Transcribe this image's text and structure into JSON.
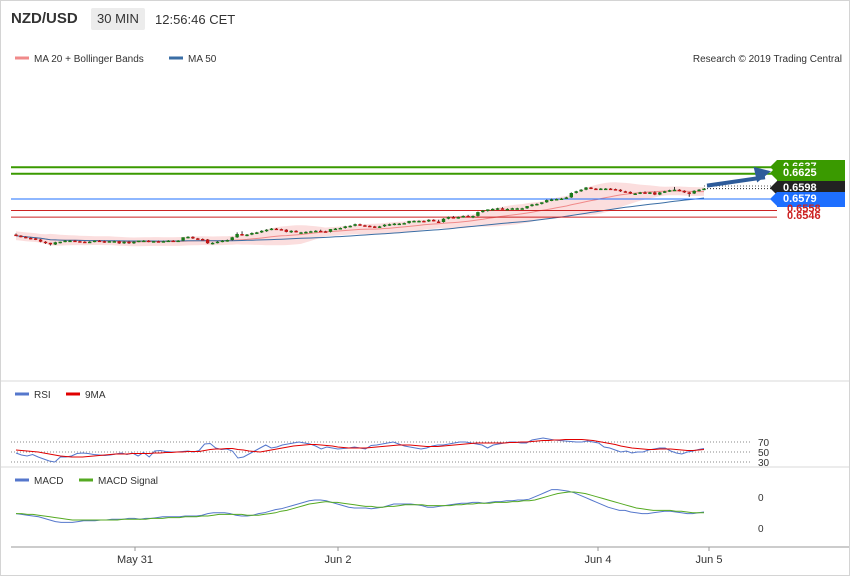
{
  "header": {
    "symbol": "NZD/USD",
    "timeframe": "30 MIN",
    "time": "12:56:46 CET"
  },
  "legend_main": {
    "bb_label": "MA 20 + Bollinger Bands",
    "ma_label": "MA 50",
    "bb_color": "#f08a8a",
    "ma_color": "#3a6ea5"
  },
  "credit": "Research © 2019 Trading Central",
  "levels": [
    {
      "value": "0.6637",
      "kind": "target",
      "color": "#3a9a00"
    },
    {
      "value": "0.6625",
      "kind": "target",
      "color": "#3a9a00"
    },
    {
      "value": "0.6598",
      "kind": "last",
      "color": "#222222"
    },
    {
      "value": "0.6579",
      "kind": "pivot",
      "color": "#1e6fff"
    },
    {
      "value": "0.6558",
      "kind": "support",
      "color": "#cc2222"
    },
    {
      "value": "0.6546",
      "kind": "support",
      "color": "#cc2222"
    }
  ],
  "rsi_legend": {
    "rsi_label": "RSI",
    "ma_label": "9MA"
  },
  "rsi_ticks": [
    "70",
    "50",
    "30"
  ],
  "macd_legend": {
    "macd_label": "MACD",
    "signal_label": "MACD Signal"
  },
  "macd_ticks": [
    "0",
    "0"
  ],
  "x_labels": [
    "May 31",
    "Jun 2",
    "Jun 4",
    "Jun 5"
  ],
  "chart_data": {
    "type": "candlestick",
    "timeframe": "30 MIN",
    "ylim": [
      0.6486,
      0.6647
    ],
    "x_labels": [
      "May 31",
      "Jun 2",
      "Jun 4",
      "Jun 5"
    ],
    "candles": [
      [
        0.6514,
        0.6516,
        0.6512,
        0.6512
      ],
      [
        0.6512,
        0.6513,
        0.6509,
        0.651
      ],
      [
        0.651,
        0.6511,
        0.6507,
        0.6508
      ],
      [
        0.6508,
        0.6509,
        0.6505,
        0.6507
      ],
      [
        0.6507,
        0.6508,
        0.6504,
        0.6505
      ],
      [
        0.6505,
        0.6506,
        0.65,
        0.6501
      ],
      [
        0.6501,
        0.6502,
        0.6497,
        0.6499
      ],
      [
        0.6499,
        0.6499,
        0.6494,
        0.6496
      ],
      [
        0.6496,
        0.6501,
        0.6495,
        0.65
      ],
      [
        0.65,
        0.6501,
        0.6498,
        0.6501
      ],
      [
        0.6501,
        0.6504,
        0.65,
        0.6503
      ],
      [
        0.6503,
        0.6504,
        0.6502,
        0.6503
      ],
      [
        0.6503,
        0.6504,
        0.6501,
        0.6502
      ],
      [
        0.6502,
        0.6503,
        0.65,
        0.6501
      ],
      [
        0.6501,
        0.6502,
        0.65,
        0.65
      ],
      [
        0.65,
        0.6502,
        0.6499,
        0.6501
      ],
      [
        0.6501,
        0.6503,
        0.65,
        0.6503
      ],
      [
        0.6503,
        0.6504,
        0.6502,
        0.6502
      ],
      [
        0.6502,
        0.6503,
        0.6499,
        0.65
      ],
      [
        0.65,
        0.6502,
        0.65,
        0.6502
      ],
      [
        0.6502,
        0.6503,
        0.6501,
        0.6502
      ],
      [
        0.6502,
        0.6503,
        0.6497,
        0.6498
      ],
      [
        0.6498,
        0.6502,
        0.6497,
        0.6501
      ],
      [
        0.6501,
        0.6503,
        0.6497,
        0.6498
      ],
      [
        0.6498,
        0.6502,
        0.6497,
        0.6501
      ],
      [
        0.6501,
        0.6503,
        0.65,
        0.6503
      ],
      [
        0.6503,
        0.6504,
        0.6501,
        0.6503
      ],
      [
        0.6503,
        0.6504,
        0.65,
        0.6501
      ],
      [
        0.6501,
        0.6502,
        0.65,
        0.6502
      ],
      [
        0.6502,
        0.6503,
        0.6501,
        0.6501
      ],
      [
        0.6501,
        0.6503,
        0.65,
        0.6502
      ],
      [
        0.6502,
        0.6504,
        0.6501,
        0.6503
      ],
      [
        0.6503,
        0.6504,
        0.6501,
        0.6502
      ],
      [
        0.6502,
        0.6504,
        0.6501,
        0.6503
      ],
      [
        0.6503,
        0.6509,
        0.6502,
        0.6509
      ],
      [
        0.6509,
        0.6511,
        0.6507,
        0.651
      ],
      [
        0.651,
        0.6511,
        0.6506,
        0.6507
      ],
      [
        0.6507,
        0.6508,
        0.6505,
        0.6506
      ],
      [
        0.6506,
        0.6507,
        0.6504,
        0.6505
      ],
      [
        0.6505,
        0.6506,
        0.6497,
        0.6498
      ],
      [
        0.6498,
        0.65,
        0.6496,
        0.6499
      ],
      [
        0.6499,
        0.6502,
        0.6498,
        0.6501
      ],
      [
        0.6501,
        0.6504,
        0.65,
        0.6503
      ],
      [
        0.6503,
        0.6505,
        0.6501,
        0.6504
      ],
      [
        0.6504,
        0.651,
        0.6503,
        0.6509
      ],
      [
        0.6509,
        0.6518,
        0.6508,
        0.6515
      ],
      [
        0.6515,
        0.652,
        0.6512,
        0.6513
      ],
      [
        0.6513,
        0.6515,
        0.6511,
        0.6514
      ],
      [
        0.6514,
        0.6518,
        0.6513,
        0.6517
      ],
      [
        0.6517,
        0.6519,
        0.6515,
        0.6518
      ],
      [
        0.6518,
        0.6522,
        0.6517,
        0.6521
      ],
      [
        0.6521,
        0.6524,
        0.6519,
        0.6523
      ],
      [
        0.6523,
        0.6526,
        0.6522,
        0.6525
      ],
      [
        0.6525,
        0.6526,
        0.6523,
        0.6524
      ],
      [
        0.6524,
        0.6525,
        0.6522,
        0.6523
      ],
      [
        0.6523,
        0.6524,
        0.6518,
        0.6519
      ],
      [
        0.6519,
        0.6522,
        0.6517,
        0.6521
      ],
      [
        0.6521,
        0.6522,
        0.6518,
        0.6518
      ],
      [
        0.6518,
        0.6519,
        0.6516,
        0.6518
      ],
      [
        0.6518,
        0.652,
        0.6516,
        0.6519
      ],
      [
        0.6519,
        0.6521,
        0.6518,
        0.652
      ],
      [
        0.652,
        0.6522,
        0.6519,
        0.6521
      ],
      [
        0.6521,
        0.6523,
        0.6519,
        0.652
      ],
      [
        0.652,
        0.6521,
        0.6518,
        0.6519
      ],
      [
        0.6519,
        0.6524,
        0.6518,
        0.6524
      ],
      [
        0.6524,
        0.6526,
        0.6523,
        0.6525
      ],
      [
        0.6525,
        0.6527,
        0.6524,
        0.6526
      ],
      [
        0.6526,
        0.653,
        0.6525,
        0.6529
      ],
      [
        0.6529,
        0.6531,
        0.6527,
        0.653
      ],
      [
        0.653,
        0.6534,
        0.6529,
        0.6533
      ],
      [
        0.6533,
        0.6534,
        0.653,
        0.6531
      ],
      [
        0.6531,
        0.6532,
        0.6529,
        0.653
      ],
      [
        0.653,
        0.6531,
        0.6528,
        0.6529
      ],
      [
        0.6529,
        0.653,
        0.6526,
        0.6527
      ],
      [
        0.6527,
        0.653,
        0.6526,
        0.6529
      ],
      [
        0.6529,
        0.6533,
        0.6528,
        0.6532
      ],
      [
        0.6532,
        0.6534,
        0.653,
        0.6533
      ],
      [
        0.6533,
        0.6535,
        0.6531,
        0.6534
      ],
      [
        0.6534,
        0.6535,
        0.6533,
        0.6534
      ],
      [
        0.6534,
        0.6536,
        0.6533,
        0.6535
      ],
      [
        0.6535,
        0.6539,
        0.6534,
        0.6539
      ],
      [
        0.6539,
        0.654,
        0.6538,
        0.6539
      ],
      [
        0.6539,
        0.654,
        0.6538,
        0.6539
      ],
      [
        0.6539,
        0.654,
        0.6537,
        0.6538
      ],
      [
        0.6538,
        0.6542,
        0.6537,
        0.6541
      ],
      [
        0.6541,
        0.6542,
        0.6538,
        0.6538
      ],
      [
        0.6538,
        0.6541,
        0.6536,
        0.6537
      ],
      [
        0.6537,
        0.6544,
        0.6536,
        0.6543
      ],
      [
        0.6543,
        0.6547,
        0.6542,
        0.6546
      ],
      [
        0.6546,
        0.6548,
        0.6544,
        0.6545
      ],
      [
        0.6545,
        0.6547,
        0.6543,
        0.6546
      ],
      [
        0.6546,
        0.6549,
        0.6545,
        0.6548
      ],
      [
        0.6548,
        0.655,
        0.6546,
        0.6547
      ],
      [
        0.6547,
        0.6549,
        0.6544,
        0.6548
      ],
      [
        0.6548,
        0.6556,
        0.6547,
        0.6555
      ],
      [
        0.6555,
        0.6559,
        0.6554,
        0.6558
      ],
      [
        0.6558,
        0.656,
        0.6556,
        0.656
      ],
      [
        0.656,
        0.6562,
        0.6559,
        0.6561
      ],
      [
        0.6561,
        0.6563,
        0.6559,
        0.6562
      ],
      [
        0.6562,
        0.6564,
        0.656,
        0.6561
      ],
      [
        0.6561,
        0.6562,
        0.656,
        0.6561
      ],
      [
        0.6561,
        0.6563,
        0.656,
        0.6562
      ],
      [
        0.6562,
        0.6563,
        0.6561,
        0.6562
      ],
      [
        0.6562,
        0.6563,
        0.6561,
        0.6562
      ],
      [
        0.6562,
        0.6566,
        0.6561,
        0.6566
      ],
      [
        0.6566,
        0.657,
        0.6565,
        0.6569
      ],
      [
        0.6569,
        0.6571,
        0.6567,
        0.657
      ],
      [
        0.657,
        0.6573,
        0.6569,
        0.6573
      ],
      [
        0.6573,
        0.6578,
        0.6572,
        0.6577
      ],
      [
        0.6577,
        0.658,
        0.6575,
        0.6578
      ],
      [
        0.6578,
        0.658,
        0.6577,
        0.6579
      ],
      [
        0.6579,
        0.6581,
        0.6578,
        0.658
      ],
      [
        0.658,
        0.6583,
        0.6579,
        0.6582
      ],
      [
        0.6582,
        0.6591,
        0.6581,
        0.659
      ],
      [
        0.659,
        0.6594,
        0.6589,
        0.6593
      ],
      [
        0.6593,
        0.6597,
        0.6592,
        0.6596
      ],
      [
        0.6596,
        0.6601,
        0.6595,
        0.66
      ],
      [
        0.66,
        0.6601,
        0.6597,
        0.6598
      ],
      [
        0.6598,
        0.6599,
        0.6596,
        0.6597
      ],
      [
        0.6597,
        0.6599,
        0.6596,
        0.6598
      ],
      [
        0.6598,
        0.6599,
        0.6597,
        0.6598
      ],
      [
        0.6598,
        0.6599,
        0.6596,
        0.6597
      ],
      [
        0.6597,
        0.6598,
        0.6596,
        0.6596
      ],
      [
        0.6596,
        0.6597,
        0.6592,
        0.6593
      ],
      [
        0.6593,
        0.6594,
        0.6591,
        0.6592
      ],
      [
        0.6592,
        0.6593,
        0.6588,
        0.6589
      ],
      [
        0.6589,
        0.659,
        0.6587,
        0.6589
      ],
      [
        0.6589,
        0.6592,
        0.6588,
        0.6591
      ],
      [
        0.6591,
        0.6593,
        0.6589,
        0.659
      ],
      [
        0.659,
        0.6592,
        0.6588,
        0.6591
      ],
      [
        0.6591,
        0.6593,
        0.6586,
        0.6587
      ],
      [
        0.6587,
        0.6592,
        0.6586,
        0.6591
      ],
      [
        0.6591,
        0.6594,
        0.659,
        0.6593
      ],
      [
        0.6593,
        0.6596,
        0.6592,
        0.6595
      ],
      [
        0.6595,
        0.6601,
        0.6594,
        0.6596
      ],
      [
        0.6596,
        0.6597,
        0.6593,
        0.6594
      ],
      [
        0.6594,
        0.6595,
        0.659,
        0.6591
      ],
      [
        0.6591,
        0.6592,
        0.6583,
        0.6589
      ],
      [
        0.6589,
        0.6595,
        0.6588,
        0.6594
      ],
      [
        0.6594,
        0.6597,
        0.6593,
        0.6596
      ],
      [
        0.6596,
        0.6598,
        0.6595,
        0.6598
      ]
    ],
    "current_price": 0.6598,
    "projection": {
      "from": 0.6598,
      "to": 0.6637
    },
    "rsi": {
      "yticks": [
        70,
        50,
        30
      ],
      "ylim": [
        20,
        85
      ],
      "rsi": [
        48,
        44,
        42,
        45,
        40,
        36,
        32,
        30,
        40,
        40,
        42,
        47,
        48,
        47,
        45,
        44,
        43,
        44,
        46,
        48,
        45,
        48,
        42,
        49,
        40,
        52,
        53,
        51,
        50,
        50,
        51,
        52,
        50,
        53,
        66,
        67,
        58,
        55,
        56,
        52,
        38,
        40,
        46,
        52,
        58,
        64,
        58,
        60,
        64,
        66,
        68,
        70,
        68,
        66,
        62,
        56,
        60,
        58,
        56,
        57,
        58,
        60,
        58,
        56,
        63,
        64,
        66,
        68,
        70,
        66,
        62,
        60,
        58,
        56,
        58,
        62,
        64,
        64,
        66,
        68,
        70,
        70,
        68,
        66,
        64,
        58,
        64,
        66,
        68,
        70,
        70,
        68,
        68,
        74,
        76,
        78,
        76,
        74,
        73,
        72,
        71,
        70,
        70,
        72,
        70,
        68,
        60,
        58,
        54,
        50,
        52,
        48,
        50,
        50,
        54,
        56,
        58,
        58,
        52,
        48,
        46,
        50,
        52,
        55,
        57
      ],
      "ma": [
        54,
        53,
        52,
        51,
        50,
        48,
        46,
        44,
        42,
        41,
        40,
        40,
        40,
        41,
        42,
        43,
        44,
        45,
        46,
        46,
        46,
        47,
        47,
        47,
        47,
        48,
        48,
        49,
        49,
        50,
        50,
        51,
        51,
        51,
        53,
        55,
        56,
        56,
        57,
        57,
        55,
        54,
        52,
        51,
        50,
        52,
        54,
        56,
        58,
        60,
        62,
        63,
        64,
        65,
        65,
        64,
        63,
        62,
        60,
        59,
        58,
        58,
        58,
        58,
        59,
        60,
        61,
        62,
        63,
        64,
        64,
        64,
        63,
        62,
        61,
        61,
        61,
        62,
        63,
        64,
        65,
        66,
        67,
        68,
        68,
        68,
        68,
        68,
        68,
        69,
        69,
        70,
        70,
        71,
        72,
        73,
        73,
        74,
        74,
        75,
        75,
        75,
        75,
        74,
        73,
        71,
        69,
        67,
        65,
        62,
        60,
        58,
        57,
        56,
        55,
        55,
        56,
        56,
        56,
        55,
        54,
        53,
        53,
        54,
        55
      ]
    },
    "macd": {
      "yticks": [
        0,
        0
      ],
      "macd": [
        -0.0002,
        -0.0003,
        -0.0004,
        -0.0005,
        -0.0006,
        -0.0008,
        -0.001,
        -0.0012,
        -0.0013,
        -0.0013,
        -0.0013,
        -0.0012,
        -0.0011,
        -0.0011,
        -0.0011,
        -0.001,
        -0.001,
        -0.0009,
        -0.0009,
        -0.0009,
        -0.0008,
        -0.0008,
        -0.0009,
        -0.0008,
        -0.0008,
        -0.0007,
        -0.0006,
        -0.0006,
        -0.0006,
        -0.0006,
        -0.0005,
        -0.0005,
        -0.0005,
        -0.0004,
        -0.0002,
        -0.0001,
        -0.0001,
        -0.0001,
        -0.0002,
        -0.0004,
        -0.0005,
        -0.0005,
        -0.0004,
        -0.0002,
        -0.0001,
        0.0001,
        0.0003,
        0.0004,
        0.0006,
        0.0008,
        0.001,
        0.0012,
        0.0014,
        0.0015,
        0.0015,
        0.0014,
        0.0012,
        0.001,
        0.0008,
        0.0006,
        0.0005,
        0.0005,
        0.0005,
        0.0004,
        0.0005,
        0.0006,
        0.0008,
        0.001,
        0.001,
        0.001,
        0.001,
        0.0009,
        0.0008,
        0.0006,
        0.0006,
        0.0007,
        0.0008,
        0.0009,
        0.001,
        0.0011,
        0.0011,
        0.0012,
        0.0012,
        0.0011,
        0.0012,
        0.0013,
        0.0013,
        0.0014,
        0.0014,
        0.0015,
        0.0015,
        0.0016,
        0.0019,
        0.0022,
        0.0025,
        0.0028,
        0.0028,
        0.0027,
        0.0026,
        0.0024,
        0.0021,
        0.0018,
        0.0015,
        0.0012,
        0.0009,
        0.0006,
        0.0004,
        0.0002,
        0.0002,
        0.0,
        -0.0001,
        -0.0002,
        -0.0002,
        -0.0001,
        0.0,
        0.0001,
        0.0001,
        0.0,
        -0.0001,
        -0.0002,
        -0.0002,
        -0.0001,
        0.0
      ],
      "signal": [
        -0.0002,
        -0.0002,
        -0.0003,
        -0.0003,
        -0.0004,
        -0.0005,
        -0.0006,
        -0.0007,
        -0.0008,
        -0.0009,
        -0.001,
        -0.001,
        -0.001,
        -0.001,
        -0.001,
        -0.001,
        -0.001,
        -0.001,
        -0.001,
        -0.0009,
        -0.0009,
        -0.0009,
        -0.0009,
        -0.0009,
        -0.0008,
        -0.0008,
        -0.0008,
        -0.0007,
        -0.0007,
        -0.0007,
        -0.0006,
        -0.0006,
        -0.0006,
        -0.0005,
        -0.0005,
        -0.0004,
        -0.0003,
        -0.0003,
        -0.0003,
        -0.0003,
        -0.0003,
        -0.0004,
        -0.0004,
        -0.0004,
        -0.0003,
        -0.0002,
        -0.0001,
        0.0001,
        0.0002,
        0.0004,
        0.0006,
        0.0008,
        0.001,
        0.0011,
        0.0012,
        0.0013,
        0.0012,
        0.0012,
        0.0011,
        0.001,
        0.0009,
        0.0008,
        0.0007,
        0.0007,
        0.0006,
        0.0006,
        0.0007,
        0.0007,
        0.0008,
        0.0009,
        0.0009,
        0.0009,
        0.0009,
        0.0008,
        0.0008,
        0.0008,
        0.0008,
        0.0008,
        0.0009,
        0.0009,
        0.001,
        0.001,
        0.0011,
        0.0011,
        0.0011,
        0.0012,
        0.0012,
        0.0012,
        0.0013,
        0.0013,
        0.0014,
        0.0014,
        0.0015,
        0.0017,
        0.0019,
        0.0021,
        0.0023,
        0.0024,
        0.0025,
        0.0025,
        0.0024,
        0.0023,
        0.0021,
        0.0019,
        0.0017,
        0.0015,
        0.0013,
        0.0011,
        0.0009,
        0.0007,
        0.0005,
        0.0004,
        0.0003,
        0.0002,
        0.0002,
        0.0002,
        0.0002,
        0.0001,
        0.0001,
        0.0,
        -0.0001,
        -0.0001,
        -0.0001
      ]
    }
  }
}
